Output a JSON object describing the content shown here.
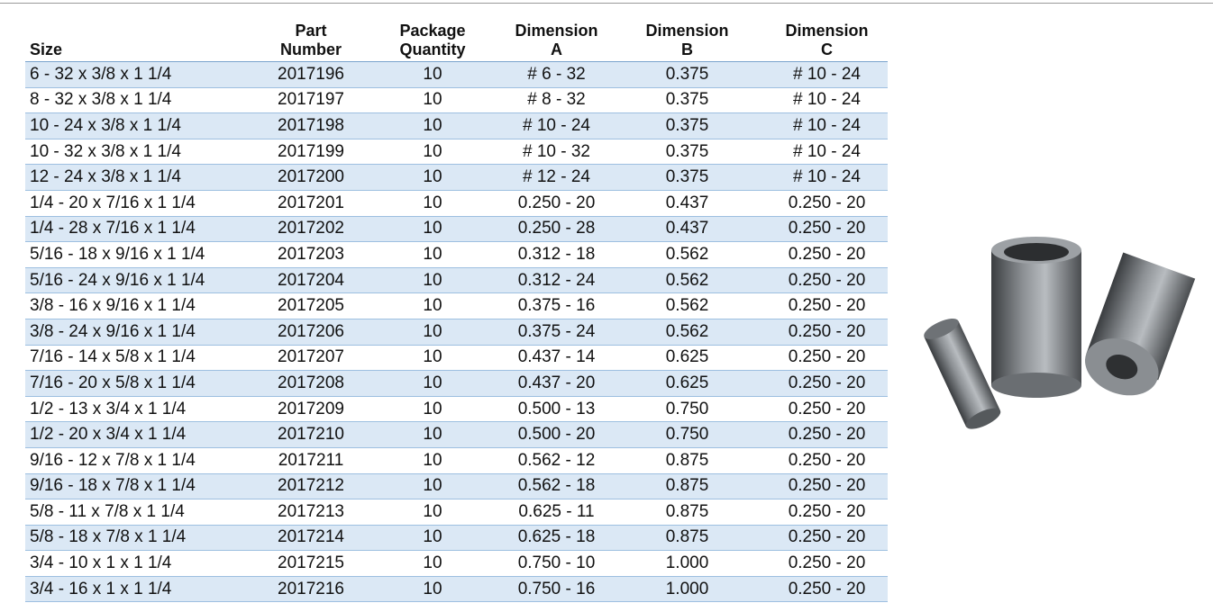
{
  "table": {
    "header": [
      "Size",
      "Part\nNumber",
      "Package\nQuantity",
      "Dimension\nA",
      "Dimension\nB",
      "Dimension\nC"
    ],
    "rows": [
      [
        "6 - 32 x 3/8 x 1 1/4",
        "2017196",
        "10",
        "# 6 - 32",
        "0.375",
        "# 10 - 24"
      ],
      [
        "8 - 32 x 3/8 x 1 1/4",
        "2017197",
        "10",
        "# 8 - 32",
        "0.375",
        "# 10 - 24"
      ],
      [
        "10 - 24 x 3/8 x 1 1/4",
        "2017198",
        "10",
        "# 10 - 24",
        "0.375",
        "# 10 - 24"
      ],
      [
        "10 - 32 x 3/8 x 1 1/4",
        "2017199",
        "10",
        "# 10 - 32",
        "0.375",
        "# 10 - 24"
      ],
      [
        "12 - 24 x 3/8 x 1 1/4",
        "2017200",
        "10",
        "# 12 - 24",
        "0.375",
        "# 10 - 24"
      ],
      [
        "1/4 - 20 x 7/16 x 1 1/4",
        "2017201",
        "10",
        "0.250 - 20",
        "0.437",
        "0.250 - 20"
      ],
      [
        "1/4 - 28 x 7/16 x 1 1/4",
        "2017202",
        "10",
        "0.250 - 28",
        "0.437",
        "0.250 - 20"
      ],
      [
        "5/16 - 18 x 9/16 x 1 1/4",
        "2017203",
        "10",
        "0.312 - 18",
        "0.562",
        "0.250 - 20"
      ],
      [
        "5/16 - 24 x 9/16 x 1 1/4",
        "2017204",
        "10",
        "0.312 - 24",
        "0.562",
        "0.250 - 20"
      ],
      [
        "3/8 - 16 x 9/16 x 1 1/4",
        "2017205",
        "10",
        "0.375 - 16",
        "0.562",
        "0.250 - 20"
      ],
      [
        "3/8 - 24 x 9/16 x 1 1/4",
        "2017206",
        "10",
        "0.375 - 24",
        "0.562",
        "0.250 - 20"
      ],
      [
        "7/16 - 14 x 5/8 x 1 1/4",
        "2017207",
        "10",
        "0.437 - 14",
        "0.625",
        "0.250 - 20"
      ],
      [
        "7/16 - 20 x 5/8 x 1 1/4",
        "2017208",
        "10",
        "0.437 - 20",
        "0.625",
        "0.250 - 20"
      ],
      [
        "1/2 - 13 x 3/4 x 1 1/4",
        "2017209",
        "10",
        "0.500 - 13",
        "0.750",
        "0.250 - 20"
      ],
      [
        "1/2 - 20 x 3/4 x 1 1/4",
        "2017210",
        "10",
        "0.500 - 20",
        "0.750",
        "0.250 - 20"
      ],
      [
        "9/16 - 12 x 7/8 x 1 1/4",
        "2017211",
        "10",
        "0.562 - 12",
        "0.875",
        "0.250 - 20"
      ],
      [
        "9/16 - 18 x 7/8 x 1 1/4",
        "2017212",
        "10",
        "0.562 - 18",
        "0.875",
        "0.250 - 20"
      ],
      [
        "5/8 - 11 x 7/8 x 1 1/4",
        "2017213",
        "10",
        "0.625 - 11",
        "0.875",
        "0.250 - 20"
      ],
      [
        "5/8 - 18 x 7/8 x 1 1/4",
        "2017214",
        "10",
        "0.625 - 18",
        "0.875",
        "0.250 - 20"
      ],
      [
        "3/4 - 10 x 1 x 1 1/4",
        "2017215",
        "10",
        "0.750 - 10",
        "1.000",
        "0.250 - 20"
      ],
      [
        "3/4 - 16 x 1 x 1 1/4",
        "2017216",
        "10",
        "0.750 - 16",
        "1.000",
        "0.250 - 20"
      ]
    ]
  }
}
